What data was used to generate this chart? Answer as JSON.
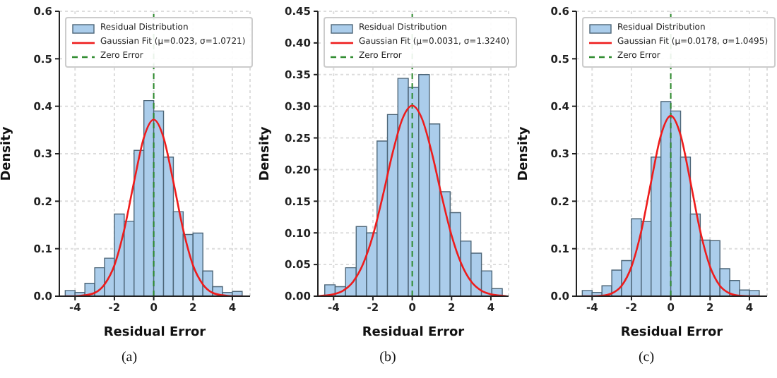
{
  "chart_data": [
    {
      "type": "histogram",
      "xlabel": "Residual Error",
      "ylabel": "Density",
      "xlim": [
        -4.8,
        4.9
      ],
      "xticks": [
        -4,
        -2,
        0,
        2,
        4
      ],
      "ylim": [
        0,
        0.6
      ],
      "yticks": [
        {
          "value": 0,
          "label": "0.0"
        },
        0.1,
        0.2,
        0.3,
        0.4,
        0.5,
        0.6
      ],
      "grid": true,
      "legend": "top left",
      "annotations": [
        "(a)"
      ],
      "bins": [
        -4.5,
        -4,
        -3.5,
        -3,
        -2.5,
        -2,
        -1.5,
        -1,
        -0.5,
        0,
        0.5,
        1,
        1.5,
        2,
        2.5,
        3,
        3.5,
        4,
        4.5
      ],
      "series": [
        {
          "name": "Residual Distribution",
          "color": "#abcdeb",
          "values": [
            0.012,
            0.008,
            0.027,
            0.06,
            0.08,
            0.173,
            0.158,
            0.307,
            0.412,
            0.39,
            0.293,
            0.178,
            0.13,
            0.133,
            0.053,
            0.02,
            0.008,
            0.01
          ]
        },
        {
          "name": "Gaussian Fit (μ=0.023, σ=1.0721)",
          "type": "line",
          "color": "#ee1c1c",
          "x": [
            -4.5,
            -4,
            -3.5,
            -3,
            -2.5,
            -2,
            -1.5,
            -1,
            -0.5,
            0,
            0.5,
            1,
            1.5,
            2,
            2.5,
            3,
            3.5,
            4,
            4.5
          ],
          "values": [
            0,
            0,
            0.002,
            0.007,
            0.025,
            0.065,
            0.14,
            0.241,
            0.334,
            0.372,
            0.334,
            0.241,
            0.14,
            0.065,
            0.025,
            0.007,
            0.002,
            0,
            0
          ]
        }
      ],
      "ref_lines": [
        {
          "axis": "x",
          "value": 0,
          "label": "Zero Error",
          "color": "#2e8b2e",
          "line_style": "dashed"
        }
      ]
    },
    {
      "type": "histogram",
      "xlabel": "Residual Error",
      "ylabel": "Density",
      "xlim": [
        -4.8,
        4.9
      ],
      "xticks": [
        -4,
        -2,
        0,
        2,
        4
      ],
      "ylim": [
        0,
        0.45
      ],
      "yticks": [
        {
          "value": 0,
          "label": "0.00"
        },
        {
          "value": 0.05,
          "label": "0.05"
        },
        {
          "value": 0.1,
          "label": "0.10"
        },
        {
          "value": 0.15,
          "label": "0.15"
        },
        {
          "value": 0.2,
          "label": "0.20"
        },
        {
          "value": 0.25,
          "label": "0.25"
        },
        {
          "value": 0.3,
          "label": "0.30"
        },
        {
          "value": 0.35,
          "label": "0.35"
        },
        {
          "value": 0.4,
          "label": "0.40"
        },
        {
          "value": 0.45,
          "label": "0.45"
        }
      ],
      "grid": true,
      "legend": "top left",
      "annotations": [
        "(b)"
      ],
      "bins": [
        -4.45,
        -3.92,
        -3.39,
        -2.85,
        -2.32,
        -1.79,
        -1.26,
        -0.73,
        -0.2,
        0.33,
        0.87,
        1.4,
        1.93,
        2.46,
        2.99,
        3.52,
        4.05,
        4.58
      ],
      "series": [
        {
          "name": "Residual Distribution",
          "color": "#abcdeb",
          "values": [
            0.018,
            0.015,
            0.045,
            0.11,
            0.1,
            0.245,
            0.287,
            0.344,
            0.33,
            0.35,
            0.272,
            0.165,
            0.132,
            0.087,
            0.068,
            0.04,
            0.012
          ]
        },
        {
          "name": "Gaussian Fit (μ=0.0031, σ=1.3240)",
          "type": "line",
          "color": "#ee1c1c",
          "x": [
            -4.8,
            -4.5,
            -4,
            -3.5,
            -3,
            -2.5,
            -2,
            -1.5,
            -1,
            -0.5,
            0,
            0.5,
            1,
            1.5,
            2,
            2.5,
            3,
            3.5,
            4,
            4.5,
            4.8
          ],
          "values": [
            0,
            0.001,
            0.003,
            0.009,
            0.023,
            0.051,
            0.096,
            0.158,
            0.226,
            0.28,
            0.301,
            0.28,
            0.226,
            0.158,
            0.096,
            0.051,
            0.023,
            0.009,
            0.003,
            0.001,
            0
          ]
        }
      ],
      "ref_lines": [
        {
          "axis": "x",
          "value": 0,
          "label": "Zero Error",
          "color": "#2e8b2e",
          "line_style": "dashed"
        }
      ]
    },
    {
      "type": "histogram",
      "xlabel": "Residual Error",
      "ylabel": "Density",
      "xlim": [
        -4.8,
        4.9
      ],
      "xticks": [
        -4,
        -2,
        0,
        2,
        4
      ],
      "ylim": [
        0,
        0.6
      ],
      "yticks": [
        {
          "value": 0,
          "label": "0.0"
        },
        0.1,
        0.2,
        0.3,
        0.4,
        0.5,
        0.6
      ],
      "grid": true,
      "legend": "top left",
      "annotations": [
        "(c)"
      ],
      "bins": [
        -4.5,
        -4,
        -3.5,
        -3,
        -2.5,
        -2,
        -1.5,
        -1,
        -0.5,
        0,
        0.5,
        1,
        1.5,
        2,
        2.5,
        3,
        3.5,
        4,
        4.5
      ],
      "series": [
        {
          "name": "Residual Distribution",
          "color": "#abcdeb",
          "values": [
            0.012,
            0.008,
            0.022,
            0.055,
            0.075,
            0.163,
            0.157,
            0.293,
            0.41,
            0.39,
            0.293,
            0.173,
            0.118,
            0.117,
            0.058,
            0.033,
            0.013,
            0.012
          ]
        },
        {
          "name": "Gaussian Fit (μ=0.0178, σ=1.0495)",
          "type": "line",
          "color": "#ee1c1c",
          "x": [
            -4.5,
            -4,
            -3.5,
            -3,
            -2.5,
            -2,
            -1.5,
            -1,
            -0.5,
            0,
            0.5,
            1,
            1.5,
            2,
            2.5,
            3,
            3.5,
            4,
            4.5
          ],
          "values": [
            0,
            0,
            0.001,
            0.006,
            0.022,
            0.062,
            0.137,
            0.241,
            0.339,
            0.38,
            0.339,
            0.241,
            0.137,
            0.062,
            0.022,
            0.006,
            0.001,
            0,
            0
          ]
        }
      ],
      "ref_lines": [
        {
          "axis": "x",
          "value": 0,
          "label": "Zero Error",
          "color": "#2e8b2e",
          "line_style": "dashed"
        }
      ]
    }
  ]
}
